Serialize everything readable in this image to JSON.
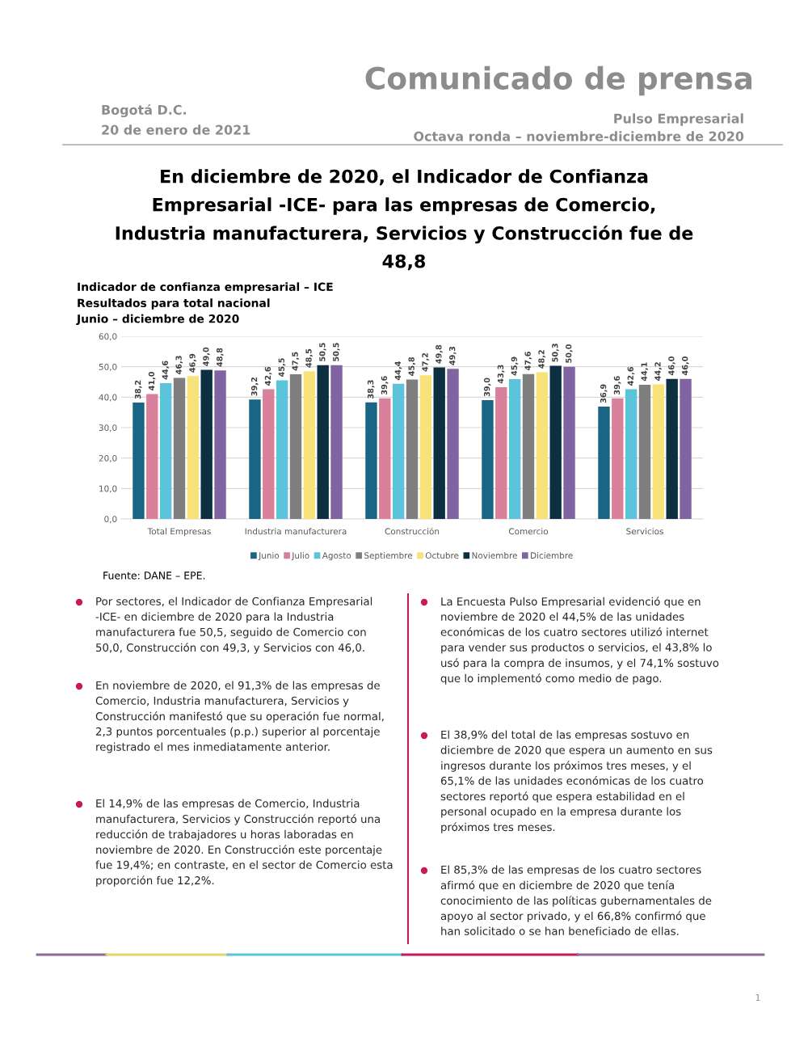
{
  "chart_data": {
    "type": "bar",
    "title": "Indicador de confianza empresarial – ICE",
    "subtitle": "Resultados para total nacional\nJunio – diciembre de 2020",
    "categories": [
      "Total Empresas",
      "Industria manufacturera",
      "Construcción",
      "Comercio",
      "Servicios"
    ],
    "series": [
      {
        "name": "Junio",
        "color": "#1a6585",
        "values": [
          38.2,
          39.2,
          38.3,
          39.0,
          36.9
        ],
        "value_labels": [
          "38,2",
          "39,2",
          "38,3",
          "39,0",
          "36,9"
        ]
      },
      {
        "name": "Julio",
        "color": "#d9809c",
        "values": [
          41.0,
          42.6,
          39.6,
          43.3,
          39.6
        ],
        "value_labels": [
          "41,0",
          "42,6",
          "39,6",
          "43,3",
          "39,6"
        ]
      },
      {
        "name": "Agosto",
        "color": "#5bc3da",
        "values": [
          44.6,
          45.5,
          44.4,
          45.9,
          42.6
        ],
        "value_labels": [
          "44,6",
          "45,5",
          "44,4",
          "45,9",
          "42,6"
        ]
      },
      {
        "name": "Septiembre",
        "color": "#7f7f7f",
        "values": [
          46.3,
          47.5,
          45.8,
          47.6,
          44.1
        ],
        "value_labels": [
          "46,3",
          "47,5",
          "45,8",
          "47,6",
          "44,1"
        ]
      },
      {
        "name": "Octubre",
        "color": "#f8e27a",
        "values": [
          46.9,
          48.5,
          47.2,
          48.2,
          44.2
        ],
        "value_labels": [
          "46,9",
          "48,5",
          "47,2",
          "48,2",
          "44,2"
        ]
      },
      {
        "name": "Noviembre",
        "color": "#0c3042",
        "values": [
          49.0,
          50.5,
          49.8,
          50.3,
          46.0
        ],
        "value_labels": [
          "49,0",
          "50,5",
          "49,8",
          "50,3",
          "46,0"
        ]
      },
      {
        "name": "Diciembre",
        "color": "#8064a2",
        "values": [
          48.8,
          50.5,
          49.3,
          50.0,
          46.0
        ],
        "value_labels": [
          "48,8",
          "50,5",
          "49,3",
          "50,0",
          "46,0"
        ]
      }
    ],
    "ylim": [
      0,
      60
    ],
    "yticks": [
      {
        "value": 0,
        "label": "0,0"
      },
      {
        "value": 10,
        "label": "10,0"
      },
      {
        "value": 20,
        "label": "20,0"
      },
      {
        "value": 30,
        "label": "30,0"
      },
      {
        "value": 40,
        "label": "40,0"
      },
      {
        "value": 50,
        "label": "50,0"
      },
      {
        "value": 60,
        "label": "60,0"
      }
    ],
    "grid": "y",
    "legend": "bottom",
    "annotations": [
      "Comunicado de prensa",
      "Bogotá D.C.",
      "20 de enero de 2021",
      "Pulso Empresarial",
      "Octava ronda – noviembre-diciembre de 2020",
      "En diciembre de 2020, el Indicador de Confianza Empresarial -ICE- para las empresas de Comercio, Industria manufacturera, Servicios y Construcción fue de 48,8",
      "Fuente: DANE – EPE.",
      "Por sectores, el Indicador de Confianza Empresarial -ICE- en diciembre de 2020 para la Industria manufacturera fue 50,5, seguido de Comercio con 50,0, Construcción con 49,3, y Servicios con 46,0.",
      "En noviembre de 2020, el 91,3% de las empresas de Comercio, Industria manufacturera, Servicios y Construcción manifestó que su operación fue normal, 2,3 puntos porcentuales (p.p.) superior al porcentaje registrado el mes inmediatamente anterior.",
      "El 14,9% de las empresas de Comercio, Industria manufacturera, Servicios y Construcción reportó una reducción de trabajadores u horas laboradas en noviembre de 2020. En Construcción este porcentaje fue 19,4%; en contraste, en el sector de Comercio esta proporción fue 12,2%.",
      "La Encuesta Pulso Empresarial evidenció que en noviembre de 2020 el 44,5% de las unidades económicas de los cuatro sectores utilizó internet para vender sus productos o servicios, el 43,8% lo usó para la compra de insumos, y el 74,1% sostuvo que lo implementó como medio de pago.",
      "El 38,9% del total de las empresas sostuvo en diciembre de 2020 que espera un aumento en sus ingresos durante los próximos tres meses, y el 65,1% de las unidades económicas de los cuatro sectores reportó que espera estabilidad en el personal ocupado en la empresa durante los próximos tres meses.",
      "El 85,3% de las empresas de los cuatro sectores afirmó que en diciembre de 2020 que tenía conocimiento de las políticas gubernamentales de apoyo al sector privado, y el 66,8% confirmó que han solicitado o se han beneficiado de ellas.",
      "1"
    ]
  }
}
